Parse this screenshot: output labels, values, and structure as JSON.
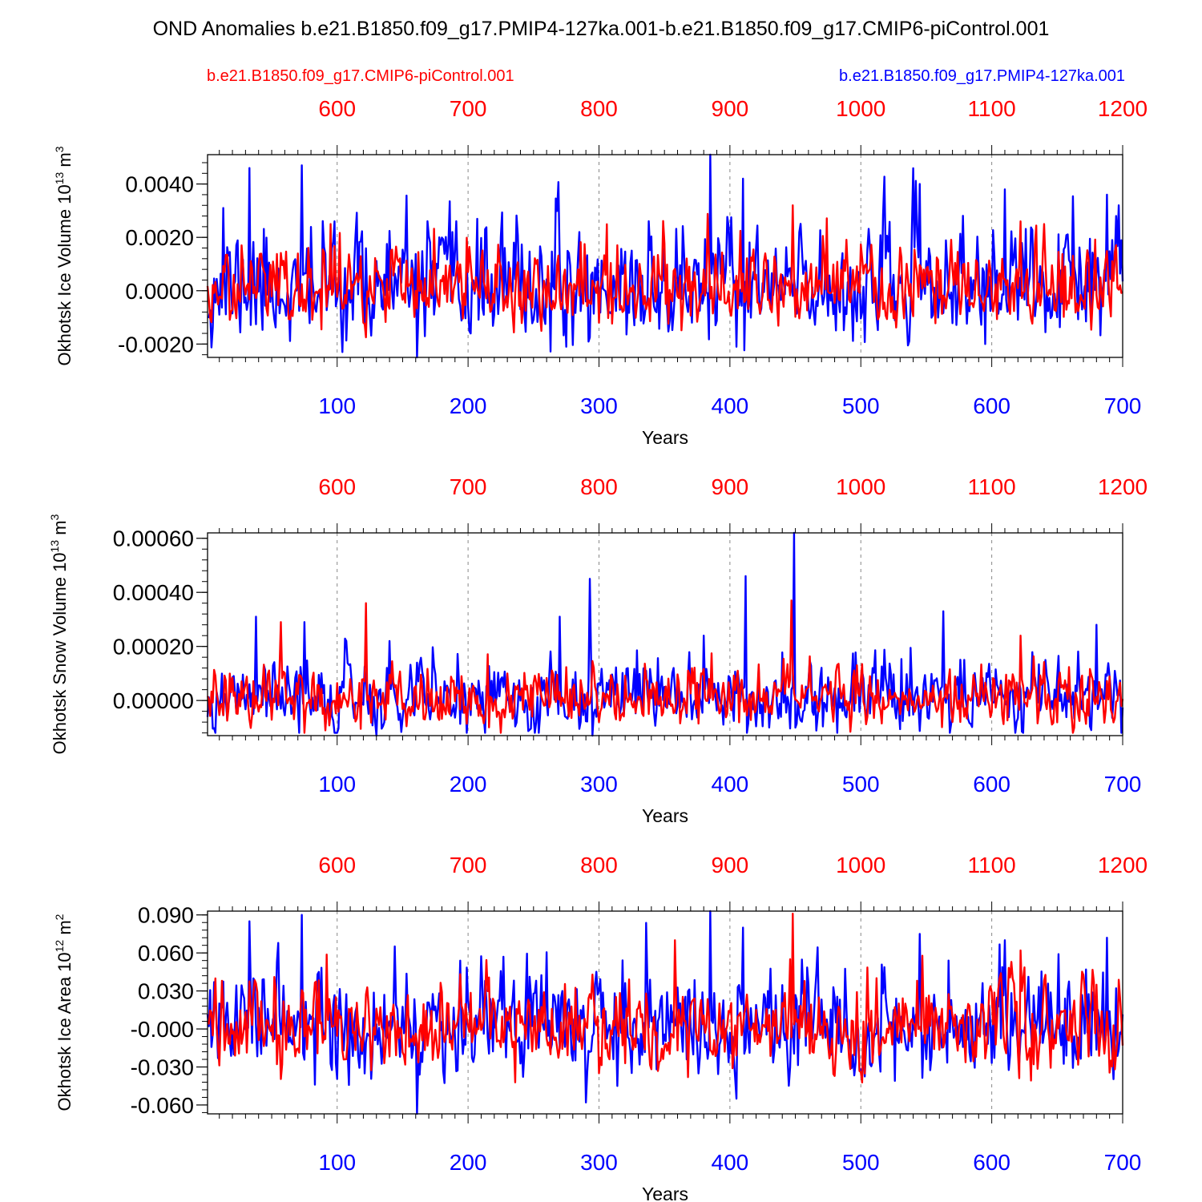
{
  "title": "OND Anomalies b.e21.B1850.f09_g17.PMIP4-127ka.001-b.e21.B1850.f09_g17.CMIP6-piControl.001",
  "legend": {
    "left": "b.e21.B1850.f09_g17.CMIP6-piControl.001",
    "right": "b.e21.B1850.f09_g17.PMIP4-127ka.001"
  },
  "colors": {
    "control": "#ff0000",
    "pmip": "#0000ff",
    "axis": "#000000",
    "grid": "#888888"
  },
  "chart_data": [
    {
      "type": "line",
      "ylabel": "Okhotsk Ice Volume 10",
      "ylabel_exp": "13",
      "ylabel_unit": " m",
      "ylabel_unit_exp": "3",
      "xlabel": "Years",
      "xlim_bottom": [
        1,
        700
      ],
      "xlim_top": [
        501,
        1200
      ],
      "ylim": [
        -0.0025,
        0.0051
      ],
      "yticks": [
        -0.002,
        0,
        0.002,
        0.004
      ],
      "ytick_labels": [
        "-0.0020",
        "0.0000",
        "0.0020",
        "0.0040"
      ],
      "bottom_ticks": [
        "100",
        "200",
        "300",
        "400",
        "500",
        "600",
        "700"
      ],
      "top_ticks": [
        "600",
        "700",
        "800",
        "900",
        "1000",
        "1100",
        "1200"
      ],
      "grid": "vertical dashed at each 100 years",
      "series": [
        {
          "name": "b.e21.B1850.f09_g17.PMIP4-127ka.001",
          "color": "#0000ff",
          "x_axis": "bottom",
          "approx_std": 0.0011,
          "peaks": [
            [
              13,
              0.0031
            ],
            [
              33,
              0.0046
            ],
            [
              73,
              0.0047
            ],
            [
              98,
              0.0026
            ],
            [
              385,
              0.0051
            ],
            [
              410,
              0.0042
            ],
            [
              545,
              0.004
            ],
            [
              610,
              0.0038
            ],
            [
              688,
              0.0036
            ],
            [
              695,
              0.0028
            ]
          ],
          "troughs": [
            [
              161,
              -0.0025
            ],
            [
              275,
              -0.0021
            ],
            [
              405,
              -0.0021
            ],
            [
              595,
              -0.002
            ]
          ]
        },
        {
          "name": "b.e21.B1850.f09_g17.CMIP6-piControl.001",
          "color": "#ff0000",
          "x_axis": "top",
          "approx_std": 0.0008,
          "peaks": [
            [
              95,
              0.0025
            ],
            [
              448,
              0.0032
            ],
            [
              622,
              0.0026
            ],
            [
              640,
              0.0025
            ]
          ],
          "troughs": [
            [
              120,
              -0.0012
            ],
            [
              300,
              -0.0012
            ]
          ]
        }
      ]
    },
    {
      "type": "line",
      "ylabel": "Okhotsk Snow Volume 10",
      "ylabel_exp": "13",
      "ylabel_unit": " m",
      "ylabel_unit_exp": "3",
      "xlabel": "Years",
      "xlim_bottom": [
        1,
        700
      ],
      "xlim_top": [
        501,
        1200
      ],
      "ylim": [
        -0.00013,
        0.00062
      ],
      "yticks": [
        0,
        0.0002,
        0.0004,
        0.0006
      ],
      "ytick_labels": [
        "0.00000",
        "0.00020",
        "0.00040",
        "0.00060"
      ],
      "bottom_ticks": [
        "100",
        "200",
        "300",
        "400",
        "500",
        "600",
        "700"
      ],
      "top_ticks": [
        "600",
        "700",
        "800",
        "900",
        "1000",
        "1100",
        "1200"
      ],
      "grid": "vertical dashed at each 100 years",
      "series": [
        {
          "name": "b.e21.B1850.f09_g17.PMIP4-127ka.001",
          "color": "#0000ff",
          "x_axis": "bottom",
          "approx_std": 7e-05,
          "peaks": [
            [
              38,
              0.00031
            ],
            [
              75,
              0.00029
            ],
            [
              140,
              0.00022
            ],
            [
              270,
              0.00031
            ],
            [
              293,
              0.00045
            ],
            [
              380,
              0.00024
            ],
            [
              412,
              0.00046
            ],
            [
              449,
              0.00062
            ],
            [
              563,
              0.00033
            ],
            [
              680,
              0.00028
            ]
          ],
          "troughs": [
            [
              130,
              -0.00013
            ],
            [
              295,
              -0.00013
            ]
          ]
        },
        {
          "name": "b.e21.B1850.f09_g17.CMIP6-piControl.001",
          "color": "#ff0000",
          "x_axis": "top",
          "approx_std": 6e-05,
          "peaks": [
            [
              57,
              0.00029
            ],
            [
              122,
              0.00036
            ],
            [
              447,
              0.00037
            ],
            [
              622,
              0.00024
            ]
          ],
          "troughs": [
            [
              300,
              -8e-05
            ]
          ]
        }
      ]
    },
    {
      "type": "line",
      "ylabel": "Okhotsk Ice Area 10",
      "ylabel_exp": "12",
      "ylabel_unit": " m",
      "ylabel_unit_exp": "2",
      "xlabel": "Years",
      "xlim_bottom": [
        1,
        700
      ],
      "xlim_top": [
        501,
        1200
      ],
      "ylim": [
        -0.067,
        0.093
      ],
      "yticks": [
        -0.06,
        -0.03,
        0,
        0.03,
        0.06,
        0.09
      ],
      "ytick_labels": [
        "-0.060",
        "-0.030",
        "-0.000",
        "0.030",
        "0.060",
        "0.090"
      ],
      "bottom_ticks": [
        "100",
        "200",
        "300",
        "400",
        "500",
        "600",
        "700"
      ],
      "top_ticks": [
        "600",
        "700",
        "800",
        "900",
        "1000",
        "1100",
        "1200"
      ],
      "grid": "vertical dashed at each 100 years",
      "series": [
        {
          "name": "b.e21.B1850.f09_g17.PMIP4-127ka.001",
          "color": "#0000ff",
          "x_axis": "bottom",
          "approx_std": 0.022,
          "peaks": [
            [
              33,
              0.085
            ],
            [
              73,
              0.09
            ],
            [
              385,
              0.093
            ],
            [
              410,
              0.08
            ],
            [
              545,
              0.075
            ],
            [
              610,
              0.07
            ],
            [
              688,
              0.072
            ]
          ],
          "troughs": [
            [
              161,
              -0.067
            ],
            [
              290,
              -0.058
            ],
            [
              405,
              -0.055
            ]
          ]
        },
        {
          "name": "b.e21.B1850.f09_g17.CMIP6-piControl.001",
          "color": "#ff0000",
          "x_axis": "top",
          "approx_std": 0.018,
          "peaks": [
            [
              448,
              0.091
            ],
            [
              622,
              0.062
            ],
            [
              358,
              0.07
            ]
          ],
          "troughs": [
            [
              300,
              -0.035
            ]
          ]
        }
      ]
    }
  ]
}
